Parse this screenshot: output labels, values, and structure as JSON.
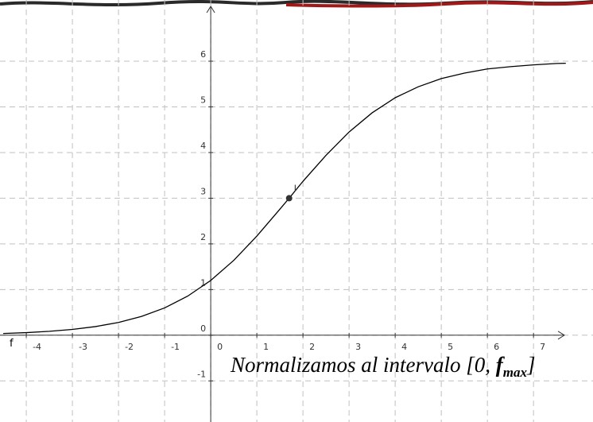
{
  "chart_data": {
    "type": "line",
    "x": [
      -4.5,
      -4,
      -3.5,
      -3,
      -2.5,
      -2,
      -1.5,
      -1,
      -0.5,
      0,
      0.5,
      1,
      1.5,
      1.7,
      2,
      2.5,
      3,
      3.5,
      4,
      4.5,
      5,
      5.5,
      6,
      6.5,
      7,
      7.5,
      7.7
    ],
    "series": [
      {
        "name": "f",
        "color": "#000000",
        "values": [
          0.038,
          0.057,
          0.086,
          0.127,
          0.189,
          0.28,
          0.412,
          0.598,
          0.856,
          1.2,
          1.64,
          2.17,
          2.76,
          3,
          3.37,
          3.94,
          4.45,
          4.87,
          5.2,
          5.44,
          5.62,
          5.74,
          5.83,
          5.88,
          5.92,
          5.95,
          5.955
        ]
      }
    ],
    "point": {
      "label": "I",
      "x": 1.7,
      "y": 3,
      "color": "#333333"
    },
    "xlim": [
      -4.57,
      8.29
    ],
    "ylim": [
      -1.9,
      7.34
    ],
    "xticks": [
      -4,
      -3,
      -2,
      -1,
      0,
      1,
      2,
      3,
      4,
      5,
      6,
      7
    ],
    "yticks": [
      -1,
      0,
      1,
      2,
      3,
      4,
      5,
      6
    ],
    "grid": true,
    "annotation": {
      "text": "Normalizamos al intervalo [0, ",
      "symbol": "f",
      "subscript": "max",
      "close": "]"
    }
  }
}
